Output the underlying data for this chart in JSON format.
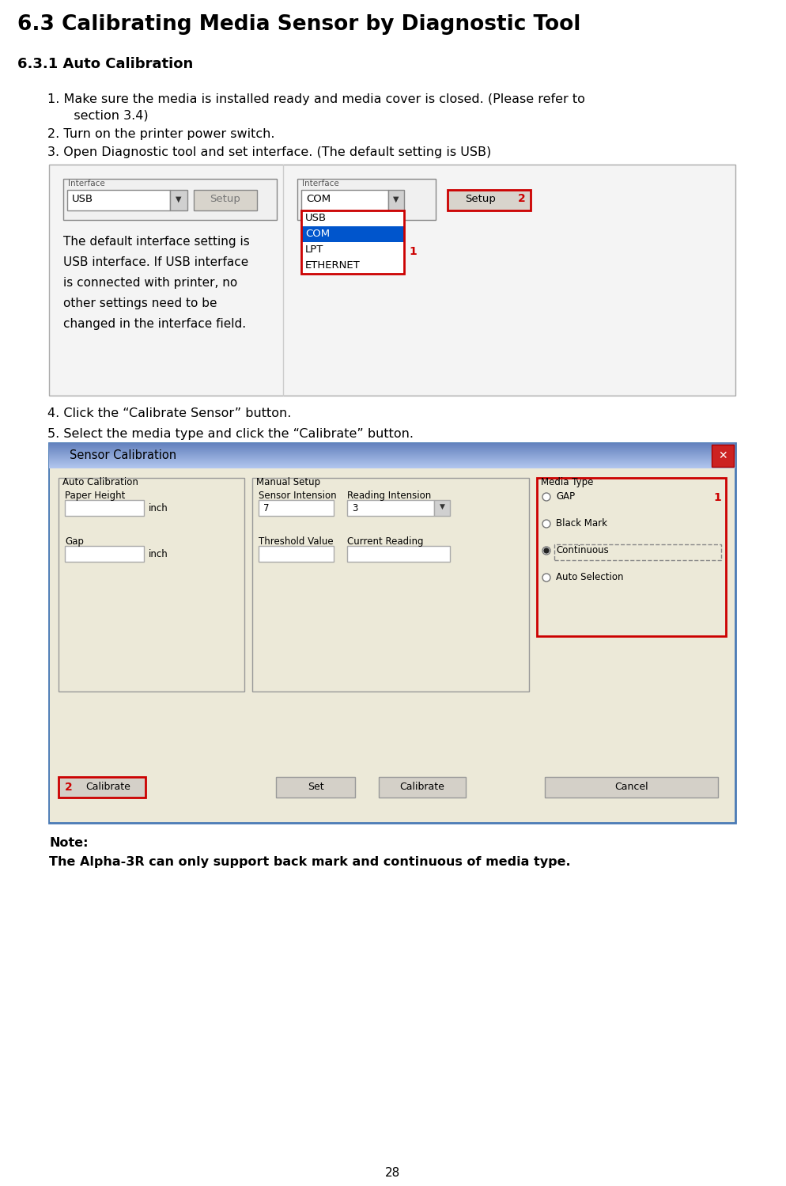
{
  "title": "6.3 Calibrating Media Sensor by Diagnostic Tool",
  "subtitle": "6.3.1 Auto Calibration",
  "step1a": "1. Make sure the media is installed ready and media cover is closed. (Please refer to",
  "step1b": "   section 3.4)",
  "step2": "2. Turn on the printer power switch.",
  "step3": "3. Open Diagnostic tool and set interface. (The default setting is USB)",
  "step4": "4. Click the “Calibrate Sensor” button.",
  "step5": "5. Select the media type and click the “Calibrate” button.",
  "sidebar_lines": [
    "The default interface setting is",
    "USB interface. If USB interface",
    "is connected with printer, no",
    "other settings need to be",
    "changed in the interface field."
  ],
  "dd_items": [
    "USB",
    "COM",
    "LPT",
    "ETHERNET"
  ],
  "dd_highlight": "COM",
  "media_types": [
    "GAP",
    "Black Mark",
    "Continuous",
    "Auto Selection"
  ],
  "media_selected": "Continuous",
  "note_label": "Note:",
  "note_text": "The Alpha-3R can only support back mark and continuous of media type.",
  "page_number": "28",
  "bg_color": "#ffffff",
  "text_color": "#000000",
  "red_color": "#cc0000",
  "blue_sel": "#0055cc",
  "gray_bg": "#e8e8e8",
  "gray_btn": "#d4d0c8",
  "border_gray": "#999999",
  "title_bar_color": "#b8cce4"
}
